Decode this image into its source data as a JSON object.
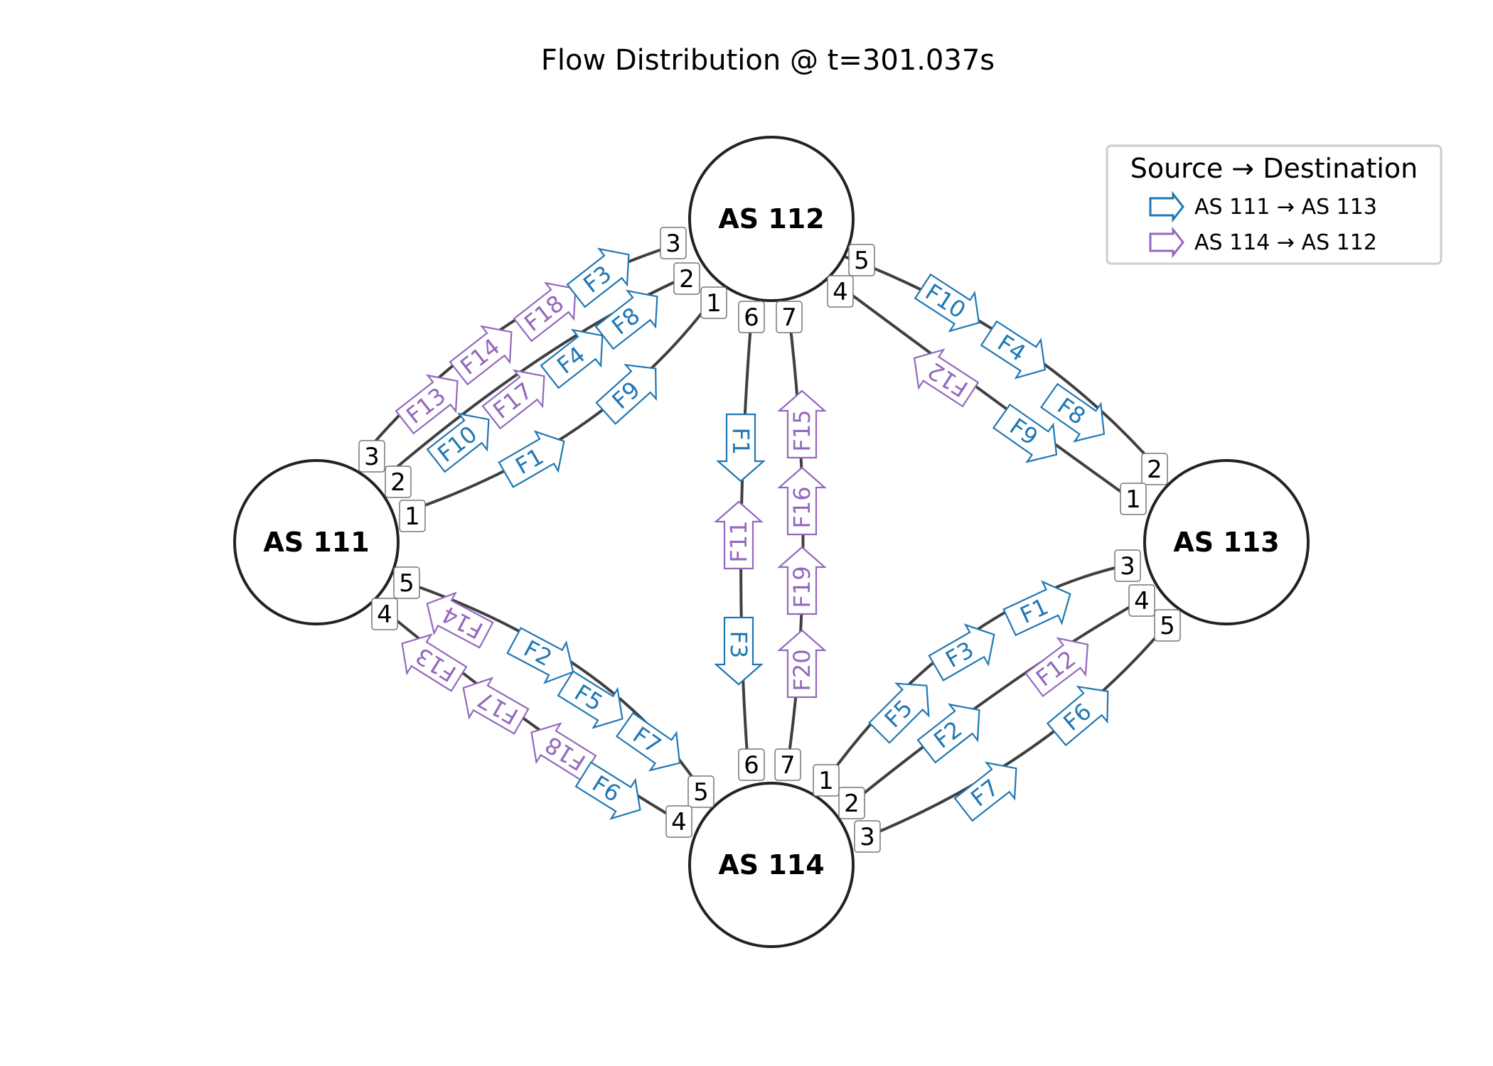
{
  "title": "Flow Distribution @ t=301.037s",
  "legend": {
    "title": "Source → Destination",
    "items": [
      {
        "label": "AS 111 → AS 113",
        "color": "#1f77b4"
      },
      {
        "label": "AS 114 → AS 112",
        "color": "#9467bd"
      }
    ]
  },
  "colors": {
    "blue": "#1f77b4",
    "purple": "#9467bd",
    "link": "#3f3f3f",
    "node_stroke": "#222222"
  },
  "nodes": {
    "as111": {
      "label": "AS 111"
    },
    "as112": {
      "label": "AS 112"
    },
    "as113": {
      "label": "AS 113"
    },
    "as114": {
      "label": "AS 114"
    }
  },
  "links": [
    {
      "id": "111-112-3",
      "from": "as111",
      "to": "as112",
      "port_from": "3",
      "port_to": "3"
    },
    {
      "id": "111-112-2",
      "from": "as111",
      "to": "as112",
      "port_from": "2",
      "port_to": "2"
    },
    {
      "id": "111-112-1",
      "from": "as111",
      "to": "as112",
      "port_from": "1",
      "port_to": "1"
    },
    {
      "id": "112-113-5",
      "from": "as112",
      "to": "as113",
      "port_from": "5",
      "port_to": "2"
    },
    {
      "id": "112-113-4",
      "from": "as112",
      "to": "as113",
      "port_from": "4",
      "port_to": "1"
    },
    {
      "id": "112-114-6",
      "from": "as112",
      "to": "as114",
      "port_from": "6",
      "port_to": "6"
    },
    {
      "id": "112-114-7",
      "from": "as112",
      "to": "as114",
      "port_from": "7",
      "port_to": "7"
    },
    {
      "id": "111-114-5",
      "from": "as111",
      "to": "as114",
      "port_from": "5",
      "port_to": "5"
    },
    {
      "id": "111-114-4",
      "from": "as111",
      "to": "as114",
      "port_from": "4",
      "port_to": "4"
    },
    {
      "id": "114-113-1",
      "from": "as114",
      "to": "as113",
      "port_from": "1",
      "port_to": "3"
    },
    {
      "id": "114-113-2",
      "from": "as114",
      "to": "as113",
      "port_from": "2",
      "port_to": "4"
    },
    {
      "id": "114-113-3",
      "from": "as114",
      "to": "as113",
      "port_from": "3",
      "port_to": "5"
    }
  ],
  "flows": [
    {
      "label": "F13",
      "group": "purple"
    },
    {
      "label": "F14",
      "group": "purple"
    },
    {
      "label": "F18",
      "group": "purple"
    },
    {
      "label": "F3",
      "group": "blue"
    },
    {
      "label": "F10",
      "group": "blue"
    },
    {
      "label": "F17",
      "group": "purple"
    },
    {
      "label": "F4",
      "group": "blue"
    },
    {
      "label": "F8",
      "group": "blue"
    },
    {
      "label": "F1",
      "group": "blue"
    },
    {
      "label": "F9",
      "group": "blue"
    },
    {
      "label": "F10",
      "group": "blue"
    },
    {
      "label": "F4",
      "group": "blue"
    },
    {
      "label": "F8",
      "group": "blue"
    },
    {
      "label": "F12",
      "group": "purple"
    },
    {
      "label": "F9",
      "group": "blue"
    },
    {
      "label": "F1",
      "group": "blue"
    },
    {
      "label": "F11",
      "group": "purple"
    },
    {
      "label": "F3",
      "group": "blue"
    },
    {
      "label": "F15",
      "group": "purple"
    },
    {
      "label": "F16",
      "group": "purple"
    },
    {
      "label": "F19",
      "group": "purple"
    },
    {
      "label": "F20",
      "group": "purple"
    },
    {
      "label": "F14",
      "group": "purple"
    },
    {
      "label": "F2",
      "group": "blue"
    },
    {
      "label": "F5",
      "group": "blue"
    },
    {
      "label": "F7",
      "group": "blue"
    },
    {
      "label": "F13",
      "group": "purple"
    },
    {
      "label": "F17",
      "group": "purple"
    },
    {
      "label": "F18",
      "group": "purple"
    },
    {
      "label": "F6",
      "group": "blue"
    },
    {
      "label": "F1",
      "group": "blue"
    },
    {
      "label": "F3",
      "group": "blue"
    },
    {
      "label": "F5",
      "group": "blue"
    },
    {
      "label": "F12",
      "group": "purple"
    },
    {
      "label": "F2",
      "group": "blue"
    },
    {
      "label": "F6",
      "group": "blue"
    },
    {
      "label": "F7",
      "group": "blue"
    }
  ]
}
